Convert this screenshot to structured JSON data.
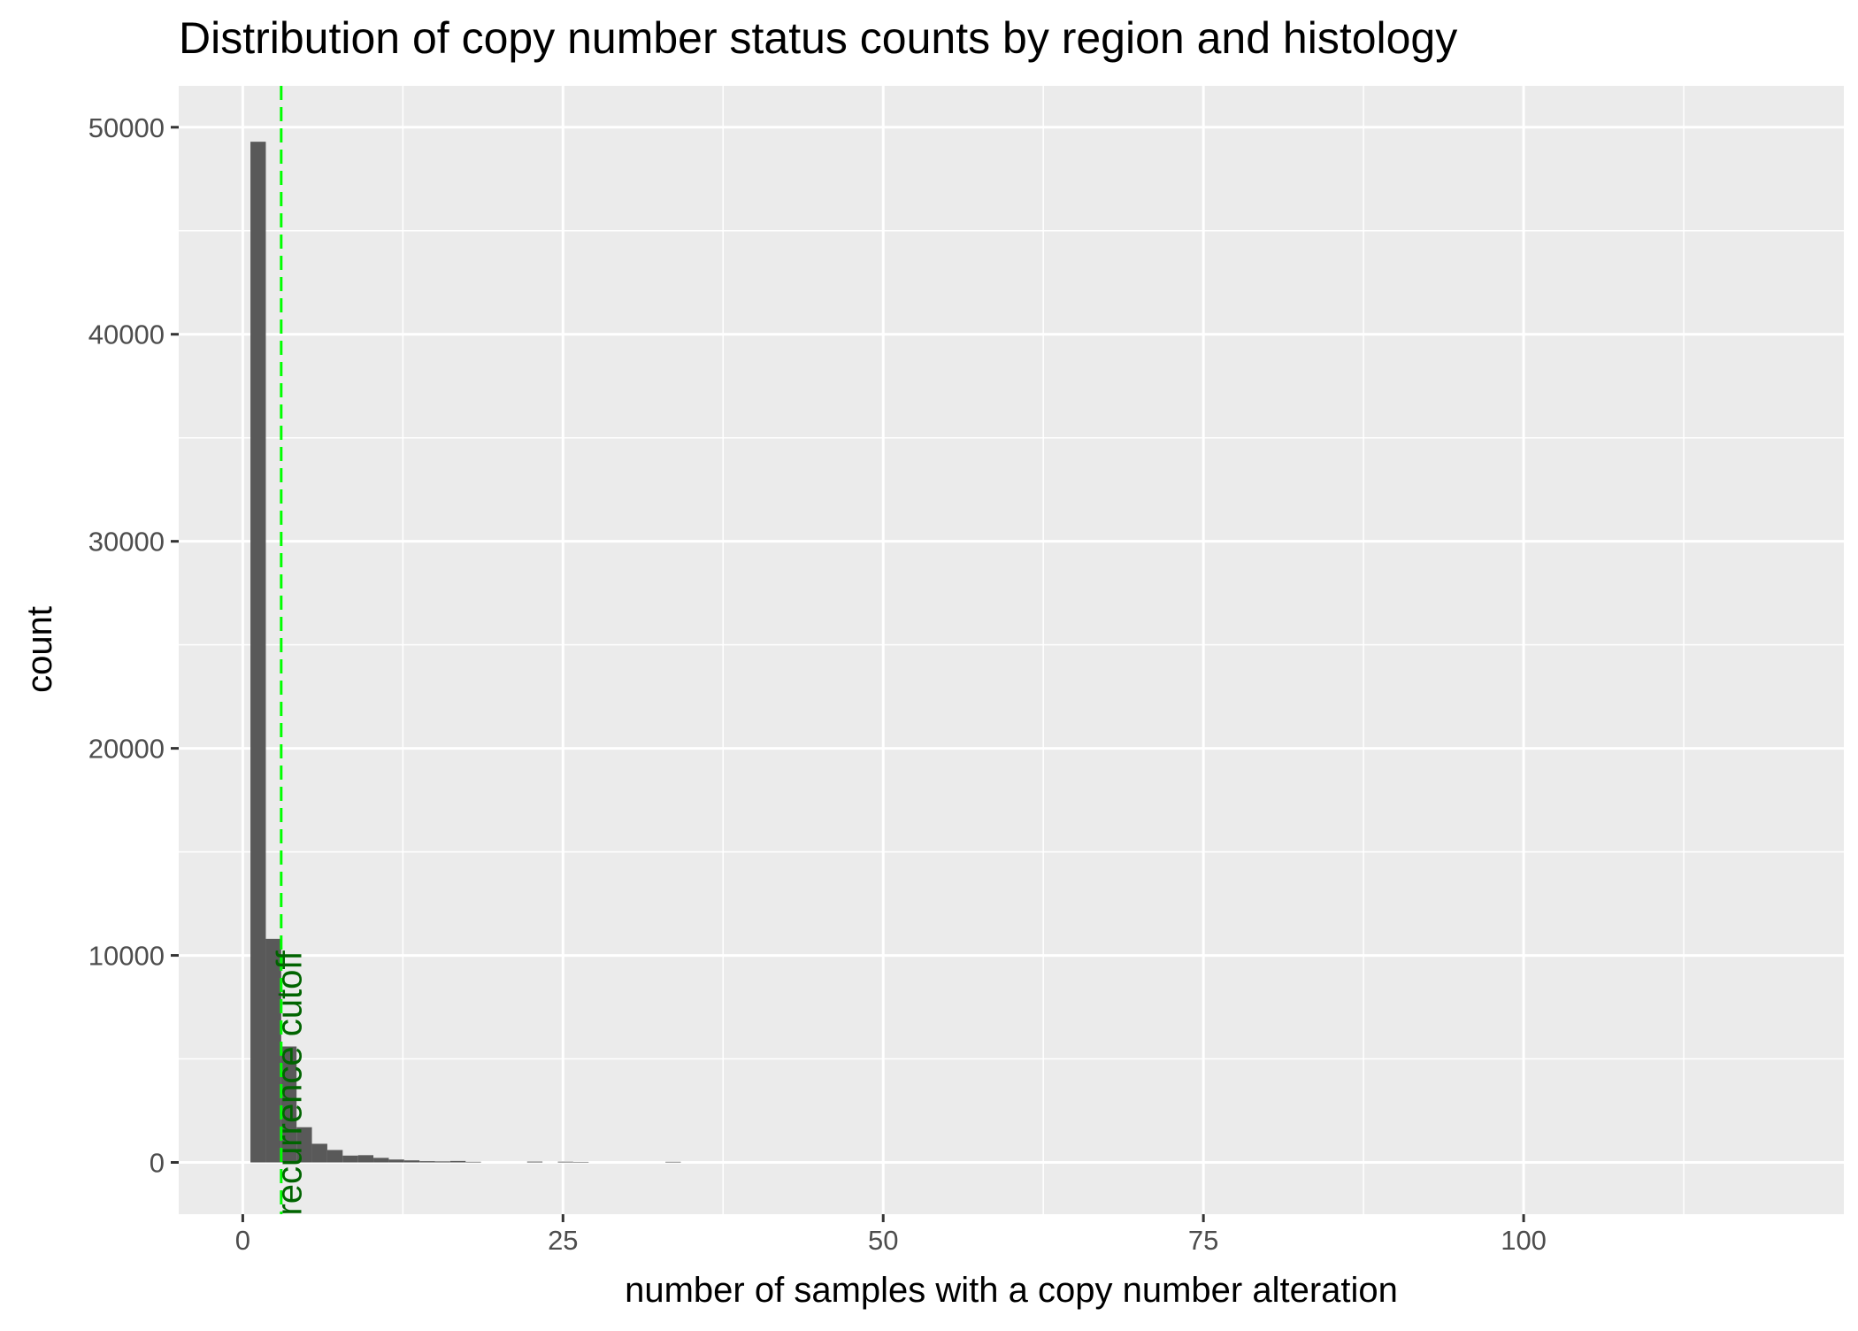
{
  "chart_data": {
    "type": "bar",
    "title": "Distribution of copy number status counts by region and histology",
    "xlabel": "number of samples with a copy number alteration",
    "ylabel": "count",
    "xlim": [
      -5,
      125
    ],
    "ylim": [
      -2500,
      52000
    ],
    "x_ticks": [
      0,
      25,
      50,
      75,
      100
    ],
    "x_tick_labels": [
      "0",
      "25",
      "50",
      "75",
      "100"
    ],
    "x_minor_ticks": [
      12.5,
      37.5,
      62.5,
      87.5,
      112.5
    ],
    "y_ticks": [
      0,
      10000,
      20000,
      30000,
      40000,
      50000
    ],
    "y_tick_labels": [
      "0",
      "10000",
      "20000",
      "30000",
      "40000",
      "50000"
    ],
    "y_minor_ticks": [
      5000,
      15000,
      25000,
      35000,
      45000
    ],
    "bin_width": 1.2,
    "bins": [
      {
        "x": 1.2,
        "count": 49300
      },
      {
        "x": 2.4,
        "count": 10800
      },
      {
        "x": 3.6,
        "count": 5600
      },
      {
        "x": 4.8,
        "count": 1700
      },
      {
        "x": 6.0,
        "count": 900
      },
      {
        "x": 7.2,
        "count": 600
      },
      {
        "x": 8.4,
        "count": 330
      },
      {
        "x": 9.6,
        "count": 350
      },
      {
        "x": 10.8,
        "count": 220
      },
      {
        "x": 12.0,
        "count": 140
      },
      {
        "x": 13.2,
        "count": 100
      },
      {
        "x": 14.4,
        "count": 60
      },
      {
        "x": 15.6,
        "count": 50
      },
      {
        "x": 16.8,
        "count": 70
      },
      {
        "x": 18.0,
        "count": 30
      },
      {
        "x": 22.8,
        "count": 40
      },
      {
        "x": 25.2,
        "count": 35
      },
      {
        "x": 26.4,
        "count": 25
      },
      {
        "x": 33.6,
        "count": 30
      }
    ],
    "bar_color": "#595959",
    "panel_background": "#ebebeb",
    "grid": true,
    "legend": "none",
    "cutoff_line": {
      "x": 3,
      "color": "#00ff00",
      "style": "dashed"
    },
    "cutoff_label": {
      "text": "recurrence cutoff",
      "x": 3.6,
      "y": 0,
      "color": "#006400"
    }
  }
}
